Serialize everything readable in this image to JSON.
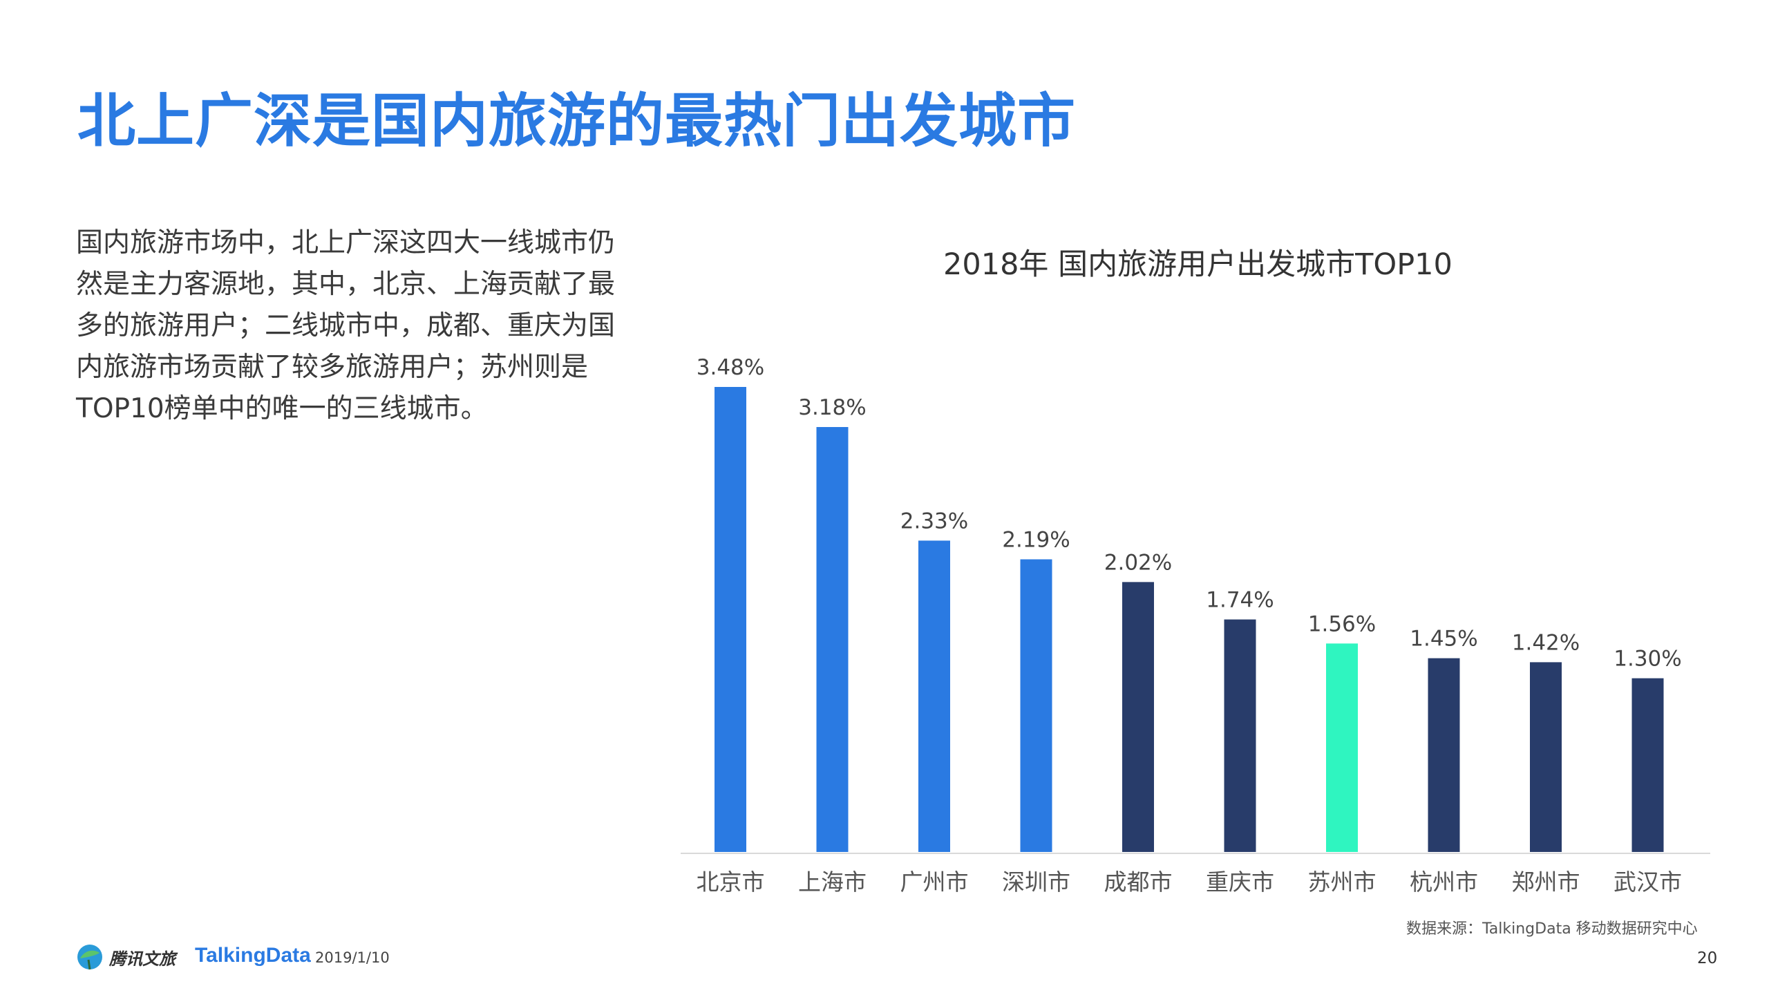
{
  "page": {
    "title": "北上广深是国内旅游的最热门出发城市",
    "description": "国内旅游市场中，北上广深这四大一线城市仍然是主力客源地，其中，北京、上海贡献了最多的旅游用户；二线城市中，成都、重庆为国内旅游市场贡献了较多旅游用户；苏州则是TOP10榜单中的唯一的三线城市。",
    "footer": {
      "logo_text": "腾讯文旅",
      "brand": "TalkingData",
      "date": "2019/1/10",
      "source": "数据来源：TalkingData 移动数据研究中心",
      "page_number": "20"
    },
    "colors": {
      "title": "#2a7ae2",
      "tier1": "#2a7ae2",
      "tier2": "#283c6a",
      "tier3": "#2ff5c0"
    }
  },
  "chart_data": {
    "type": "bar",
    "title": "2018年 国内旅游用户出发城市TOP10",
    "categories": [
      "北京市",
      "上海市",
      "广州市",
      "深圳市",
      "成都市",
      "重庆市",
      "苏州市",
      "杭州市",
      "郑州市",
      "武汉市"
    ],
    "values": [
      3.48,
      3.18,
      2.33,
      2.19,
      2.02,
      1.74,
      1.56,
      1.45,
      1.42,
      1.3
    ],
    "value_labels": [
      "3.48%",
      "3.18%",
      "2.33%",
      "2.19%",
      "2.02%",
      "1.74%",
      "1.56%",
      "1.45%",
      "1.42%",
      "1.30%"
    ],
    "bar_colors": [
      "#2a7ae2",
      "#2a7ae2",
      "#2a7ae2",
      "#2a7ae2",
      "#283c6a",
      "#283c6a",
      "#2ff5c0",
      "#283c6a",
      "#283c6a",
      "#283c6a"
    ],
    "ylim": [
      0,
      3.48
    ],
    "grid": false,
    "legend": "none",
    "unit": "%"
  }
}
